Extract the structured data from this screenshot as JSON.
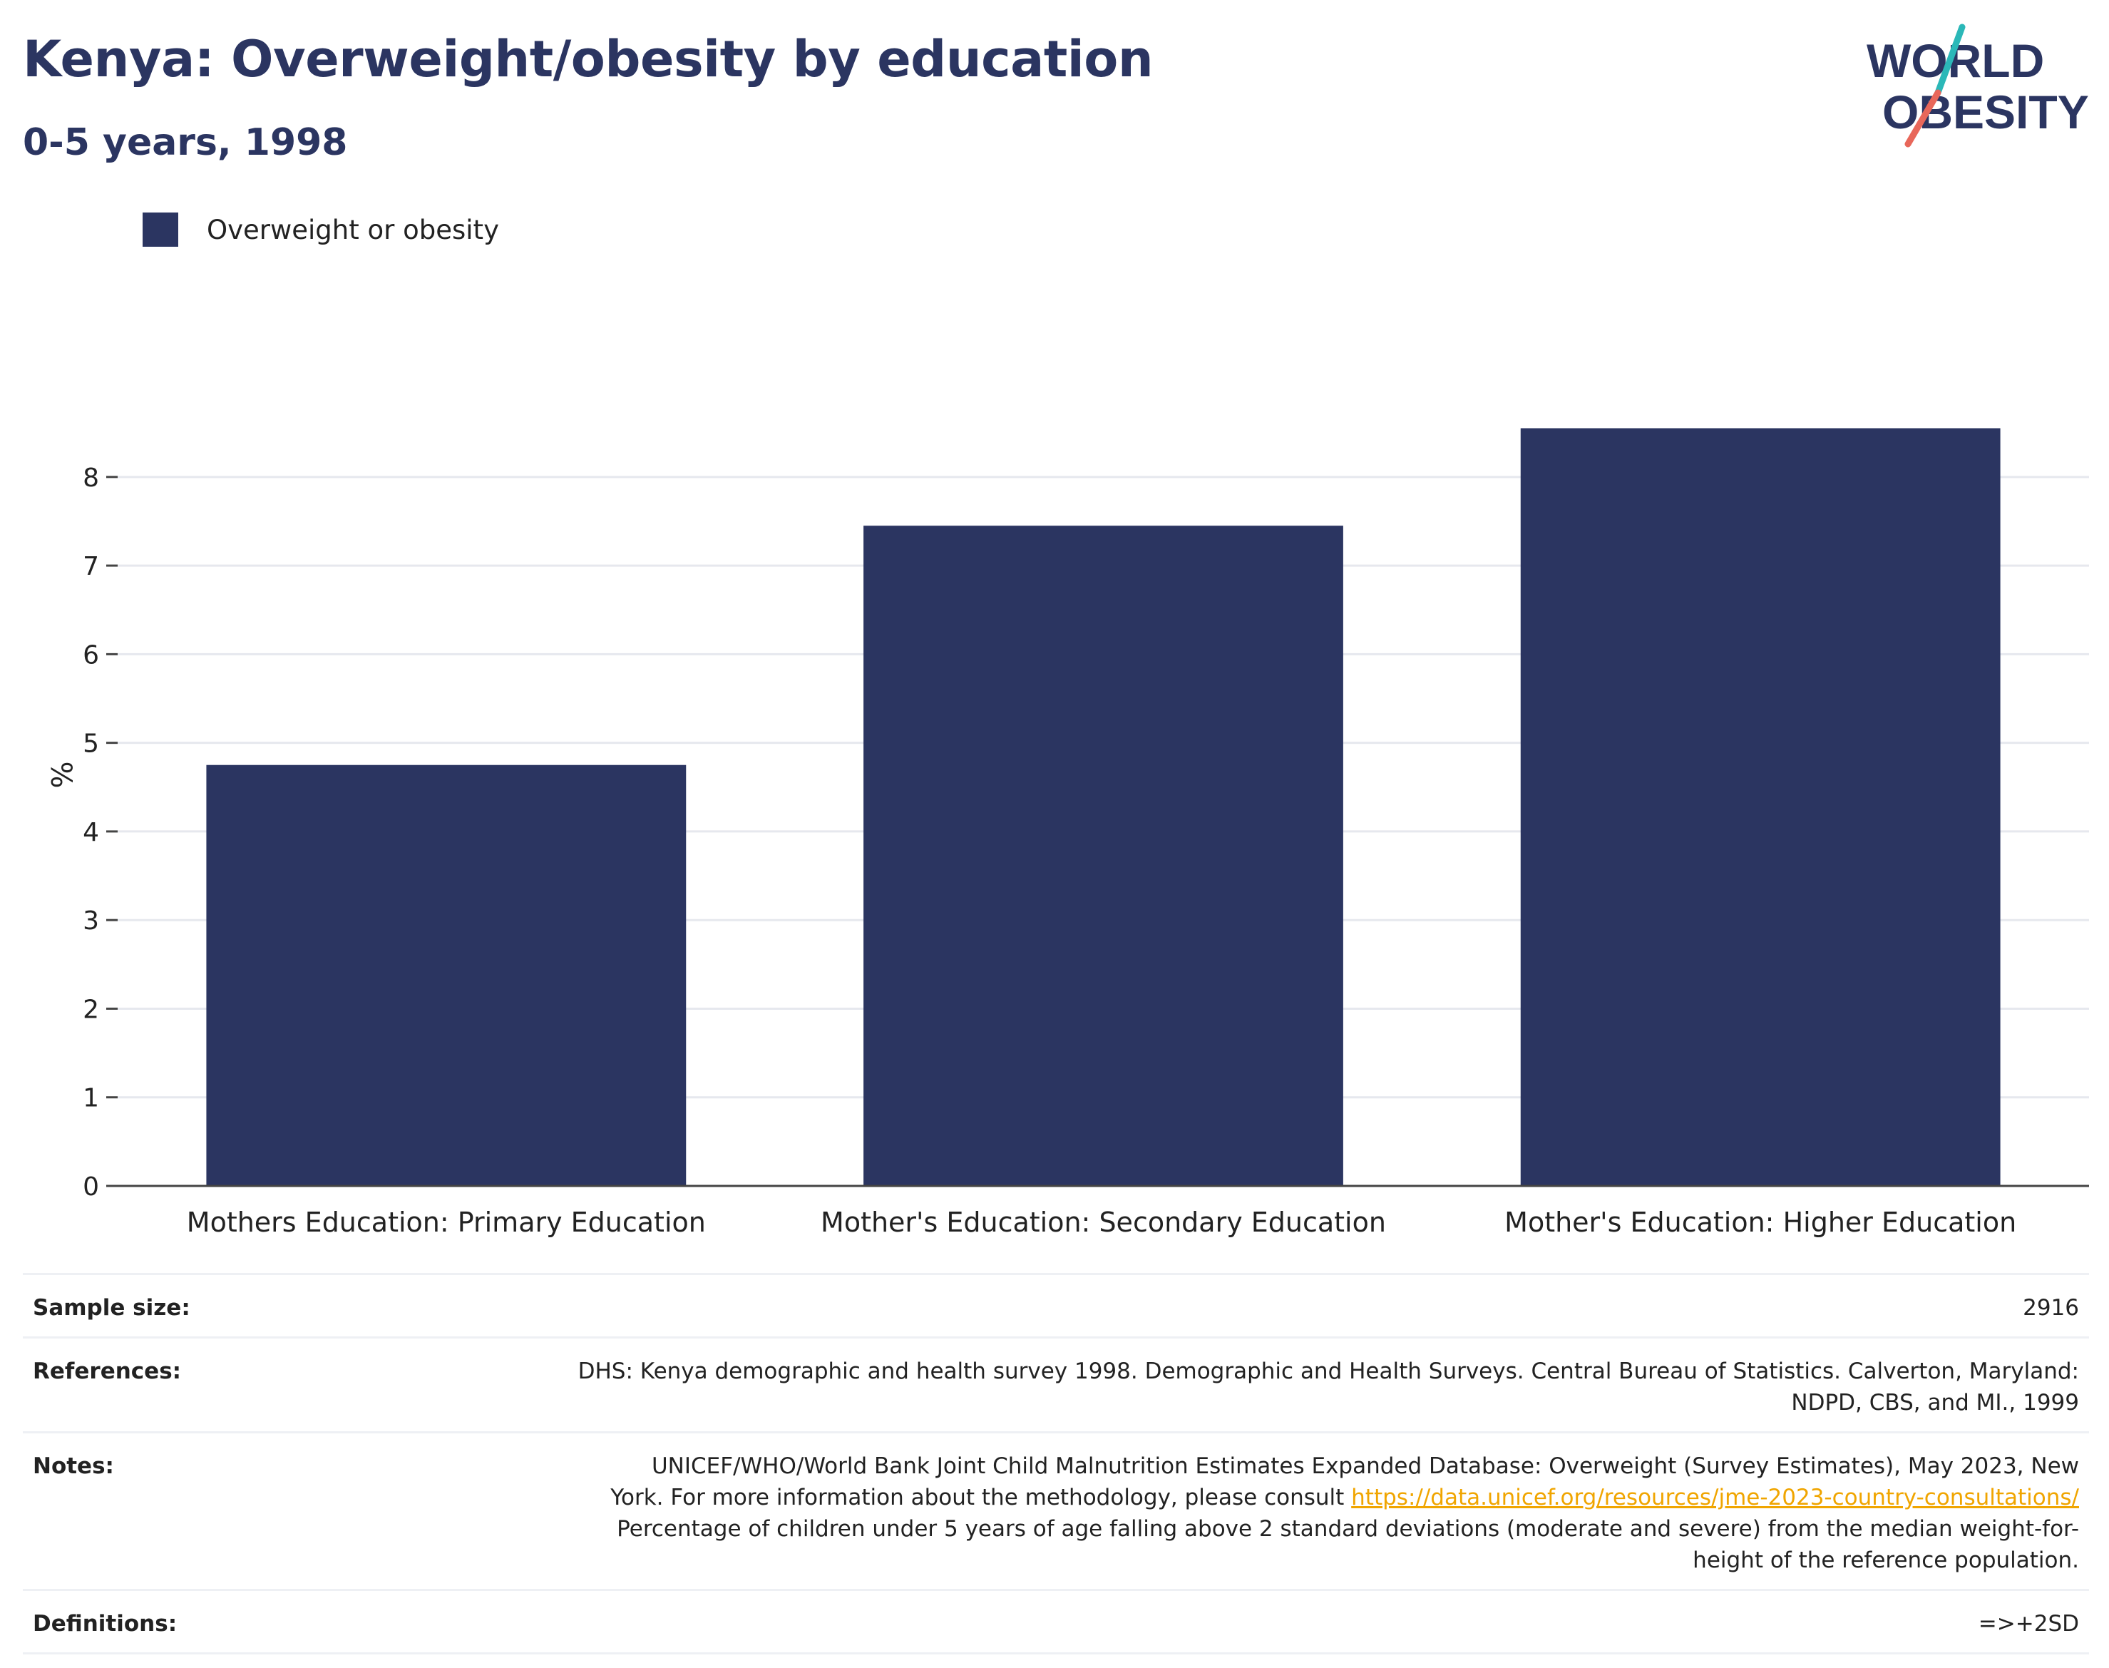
{
  "header": {
    "title": "Kenya: Overweight/obesity by education",
    "subtitle": "0-5 years, 1998"
  },
  "logo": {
    "line1": "WORLD",
    "line2": "OBESITY",
    "accent_teal": "#2bb8b8",
    "accent_coral": "#e8675a"
  },
  "legend": {
    "label": "Overweight or obesity",
    "color": "#2b3561"
  },
  "chart_data": {
    "type": "bar",
    "categories": [
      "Mothers Education: Primary Education",
      "Mother's Education: Secondary Education",
      "Mother's Education: Higher Education"
    ],
    "series": [
      {
        "name": "Overweight or obesity",
        "values": [
          4.75,
          7.45,
          8.55
        ],
        "color": "#2b3561"
      }
    ],
    "ylabel": "%",
    "ylim": [
      0,
      9.6
    ],
    "yticks": [
      0,
      1,
      2,
      3,
      4,
      5,
      6,
      7,
      8
    ],
    "grid": true,
    "legend_position": "top-left"
  },
  "info": {
    "sample_size_label": "Sample size:",
    "sample_size_value": "2916",
    "references_label": "References:",
    "references_line1": "DHS: Kenya demographic and health survey 1998. Demographic and Health Surveys. Central Bureau of Statistics. Calverton, Maryland:",
    "references_line2": "NDPD, CBS, and MI., 1999",
    "notes_label": "Notes:",
    "notes_line1": "UNICEF/WHO/World Bank Joint Child Malnutrition Estimates Expanded Database: Overweight (Survey Estimates), May 2023, New",
    "notes_line2_prefix": "York. For more information about the methodology, please consult ",
    "notes_link": "https://data.unicef.org/resources/jme-2023-country-consultations/",
    "notes_line3": "Percentage of children under 5 years of age falling above 2 standard deviations (moderate and severe) from the median weight-for-",
    "notes_line4": "height of the reference population.",
    "definitions_label": "Definitions:",
    "definitions_value": "=>+2SD",
    "link_color": "#f0a500"
  }
}
